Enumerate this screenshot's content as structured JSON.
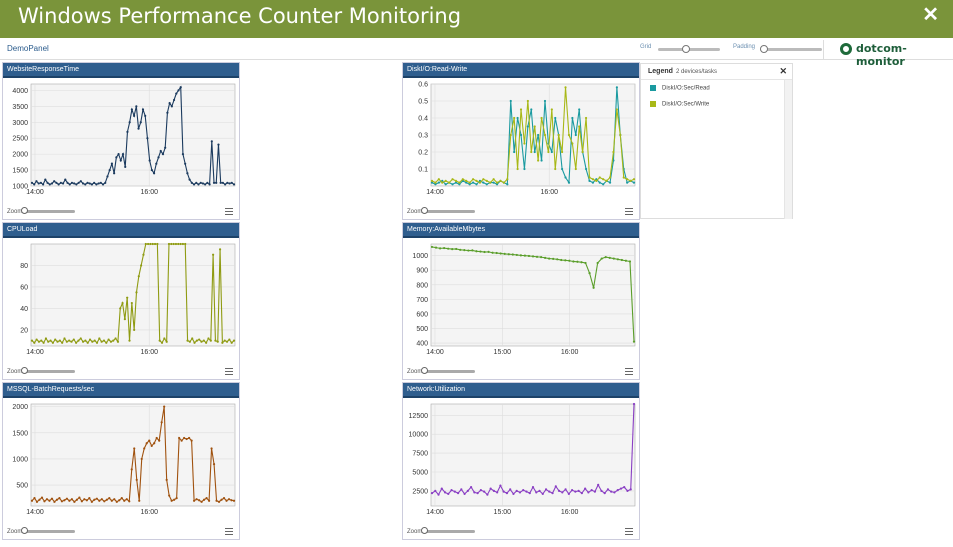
{
  "window": {
    "title": "Windows Performance Counter Monitoring",
    "close_glyph": "✕"
  },
  "toolbar": {
    "panel_name": "DemoPanel",
    "grid_label": "Grid",
    "padding_label": "Padding",
    "brand": "dotcom-monitor",
    "grid_value": 0.45,
    "padding_value": 0.06
  },
  "zoom_label": "Zoom",
  "legend": {
    "title": "Legend",
    "subtitle": "2 devices/tasks",
    "close_glyph": "✕",
    "items": [
      {
        "label": "DiskI/O:Sec/Read",
        "color": "#1a9aa0"
      },
      {
        "label": "DiskI/O:Sec/Write",
        "color": "#a8b817"
      }
    ]
  },
  "chart_data": [
    {
      "id": "website",
      "title": "WebsiteResponseTime",
      "type": "line",
      "xlabels": [
        "14:00",
        "16:00"
      ],
      "yticks": [
        1000,
        1500,
        2000,
        2500,
        3000,
        3500,
        4000
      ],
      "ylim": [
        1000,
        4200
      ],
      "series": [
        {
          "color": "#1b3a5e",
          "values": [
            1100,
            1050,
            1150,
            1080,
            1100,
            1050,
            1200,
            1100,
            1050,
            1080,
            1150,
            1100,
            1050,
            1100,
            1080,
            1200,
            1100,
            1050,
            1100,
            1080,
            1050,
            1100,
            1150,
            1080,
            1050,
            1100,
            1080,
            1050,
            1100,
            1050,
            1080,
            1100,
            1050,
            1100,
            1300,
            1500,
            1700,
            1400,
            1900,
            2000,
            1800,
            2000,
            1600,
            2700,
            3000,
            3400,
            3200,
            3500,
            2800,
            3000,
            3400,
            3200,
            2500,
            1800,
            1500,
            1400,
            1700,
            1900,
            2100,
            2000,
            2200,
            3300,
            3600,
            3500,
            3700,
            3900,
            4000,
            4100,
            2000,
            1700,
            1400,
            1200,
            1100,
            1050,
            1100,
            1050,
            1100,
            1080,
            1050,
            1100,
            1050,
            2400,
            1100,
            1100,
            2300,
            1100,
            1100,
            1050,
            1100,
            1080,
            1100,
            1050
          ]
        }
      ]
    },
    {
      "id": "disk",
      "title": "DiskI/O:Read-Write",
      "type": "line",
      "xlabels": [
        "14:00",
        "16:00"
      ],
      "yticks": [
        0.1,
        0.2,
        0.3,
        0.4,
        0.5,
        0.6
      ],
      "ylim": [
        0,
        0.6
      ],
      "series": [
        {
          "name": "DiskI/O:Sec/Read",
          "color": "#1a9aa0",
          "values": [
            0.02,
            0.01,
            0.02,
            0.03,
            0.01,
            0.02,
            0.01,
            0.02,
            0.01,
            0.03,
            0.02,
            0.01,
            0.02,
            0.01,
            0.03,
            0.02,
            0.01,
            0.02,
            0.02,
            0.01,
            0.03,
            0.02,
            0.01,
            0.5,
            0.2,
            0.4,
            0.3,
            0.1,
            0.35,
            0.45,
            0.2,
            0.3,
            0.15,
            0.5,
            0.25,
            0.2,
            0.4,
            0.3,
            0.1,
            0.05,
            0.02,
            0.4,
            0.3,
            0.45,
            0.2,
            0.1,
            0.03,
            0.02,
            0.04,
            0.02,
            0.01,
            0.03,
            0.02,
            0.15,
            0.58,
            0.3,
            0.1,
            0.02,
            0.03,
            0.02
          ]
        },
        {
          "name": "DiskI/O:Sec/Write",
          "color": "#a8b817",
          "values": [
            0.03,
            0.02,
            0.04,
            0.02,
            0.03,
            0.02,
            0.04,
            0.03,
            0.02,
            0.04,
            0.03,
            0.02,
            0.04,
            0.03,
            0.02,
            0.04,
            0.03,
            0.02,
            0.04,
            0.02,
            0.03,
            0.02,
            0.04,
            0.3,
            0.4,
            0.1,
            0.45,
            0.25,
            0.5,
            0.2,
            0.35,
            0.15,
            0.4,
            0.3,
            0.2,
            0.45,
            0.1,
            0.3,
            0.2,
            0.58,
            0.3,
            0.25,
            0.1,
            0.35,
            0.2,
            0.4,
            0.05,
            0.04,
            0.03,
            0.05,
            0.04,
            0.03,
            0.05,
            0.2,
            0.45,
            0.3,
            0.05,
            0.04,
            0.03,
            0.04
          ]
        }
      ]
    },
    {
      "id": "cpu",
      "title": "CPULoad",
      "type": "line",
      "xlabels": [
        "14:00",
        "16:00"
      ],
      "yticks": [
        20,
        40,
        60,
        80
      ],
      "ylim": [
        5,
        100
      ],
      "series": [
        {
          "color": "#8f9b12",
          "values": [
            10,
            8,
            11,
            9,
            10,
            8,
            12,
            9,
            10,
            8,
            11,
            9,
            10,
            8,
            12,
            9,
            10,
            9,
            11,
            8,
            10,
            12,
            9,
            10,
            8,
            11,
            9,
            10,
            8,
            12,
            9,
            10,
            8,
            11,
            9,
            10,
            12,
            9,
            40,
            45,
            30,
            50,
            10,
            45,
            20,
            55,
            70,
            80,
            90,
            100,
            100,
            100,
            100,
            100,
            100,
            10,
            8,
            12,
            9,
            100,
            100,
            100,
            100,
            100,
            100,
            100,
            100,
            10,
            9,
            12,
            8,
            10,
            11,
            9,
            10,
            8,
            12,
            10,
            90,
            10,
            9,
            95,
            8,
            10,
            9,
            11,
            8,
            10
          ]
        }
      ]
    },
    {
      "id": "memory",
      "title": "Memory:AvailableMbytes",
      "type": "line",
      "xlabels": [
        "14:00",
        "15:00",
        "16:00"
      ],
      "yticks": [
        400,
        500,
        600,
        700,
        800,
        900,
        1000
      ],
      "ylim": [
        380,
        1080
      ],
      "series": [
        {
          "color": "#5a9e2a",
          "values": [
            1060,
            1055,
            1050,
            1052,
            1048,
            1045,
            1046,
            1040,
            1038,
            1035,
            1036,
            1030,
            1028,
            1025,
            1026,
            1020,
            1018,
            1015,
            1012,
            1010,
            1008,
            1005,
            1002,
            1000,
            998,
            995,
            992,
            990,
            985,
            980,
            978,
            975,
            970,
            968,
            965,
            960,
            958,
            955,
            950,
            880,
            780,
            950,
            980,
            990,
            985,
            980,
            975,
            970,
            965,
            960,
            410
          ]
        }
      ]
    },
    {
      "id": "mssql",
      "title": "MSSQL-BatchRequests/sec",
      "type": "line",
      "xlabels": [
        "14:00",
        "16:00"
      ],
      "yticks": [
        500,
        1000,
        1500,
        2000
      ],
      "ylim": [
        100,
        2050
      ],
      "series": [
        {
          "color": "#a0520f",
          "values": [
            200,
            250,
            180,
            220,
            260,
            190,
            230,
            200,
            240,
            180,
            220,
            250,
            190,
            210,
            240,
            200,
            230,
            180,
            220,
            260,
            190,
            230,
            210,
            250,
            180,
            220,
            240,
            200,
            230,
            190,
            220,
            250,
            200,
            230,
            180,
            210,
            250,
            200,
            230,
            190,
            800,
            1200,
            600,
            200,
            1000,
            1200,
            1300,
            1350,
            1250,
            1300,
            1400,
            1350,
            1700,
            2000,
            600,
            300,
            200,
            220,
            250,
            1400,
            1350,
            1400,
            1380,
            1400,
            1350,
            200,
            230,
            210,
            180,
            220,
            250,
            200,
            1200,
            900,
            200,
            180,
            220,
            250,
            200,
            230,
            210,
            200
          ]
        }
      ]
    },
    {
      "id": "network",
      "title": "Network:Utilization",
      "type": "line",
      "xlabels": [
        "14:00",
        "15:00",
        "16:00"
      ],
      "yticks": [
        2500,
        5000,
        7500,
        10000,
        12500
      ],
      "ylim": [
        500,
        14000
      ],
      "series": [
        {
          "color": "#8a3fc4",
          "values": [
            2200,
            2500,
            2000,
            2800,
            2300,
            2100,
            2600,
            2400,
            2200,
            2700,
            2100,
            2500,
            3000,
            2300,
            2200,
            2600,
            2400,
            2000,
            2800,
            2500,
            2300,
            3200,
            2400,
            2200,
            2700,
            2100,
            2500,
            2300,
            2600,
            2400,
            2200,
            3000,
            2300,
            2500,
            2100,
            2700,
            2400,
            2200,
            3100,
            2500,
            2300,
            2700,
            2100,
            2600,
            2400,
            2500,
            2200,
            2800,
            2300,
            2600,
            2400,
            3300,
            2500,
            2200,
            2700,
            2400,
            2300,
            2600,
            2800,
            3000,
            2500,
            2700,
            14000
          ]
        }
      ]
    }
  ]
}
